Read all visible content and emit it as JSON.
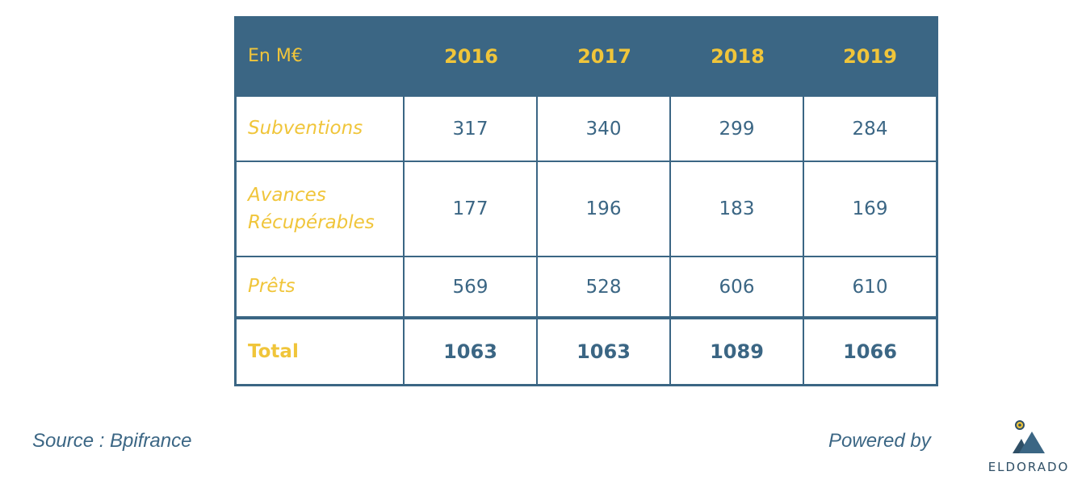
{
  "chart_data": {
    "type": "table",
    "header": {
      "label": "En M€",
      "years": [
        "2016",
        "2017",
        "2018",
        "2019"
      ]
    },
    "rows": [
      {
        "label": "Subventions",
        "values": [
          "317",
          "340",
          "299",
          "284"
        ]
      },
      {
        "label_lines": [
          "Avances",
          "Récupérables"
        ],
        "values": [
          "177",
          "196",
          "183",
          "169"
        ]
      },
      {
        "label": "Prêts",
        "values": [
          "569",
          "528",
          "606",
          "610"
        ]
      }
    ],
    "total": {
      "label": "Total",
      "values": [
        "1063",
        "1063",
        "1089",
        "1066"
      ]
    }
  },
  "footer": {
    "source": "Source : Bpifrance",
    "powered_by": "Powered by",
    "logo_text": "ELDORADO"
  },
  "colors": {
    "primary": "#3b6684",
    "accent": "#f0c53a",
    "background": "#ffffff"
  }
}
